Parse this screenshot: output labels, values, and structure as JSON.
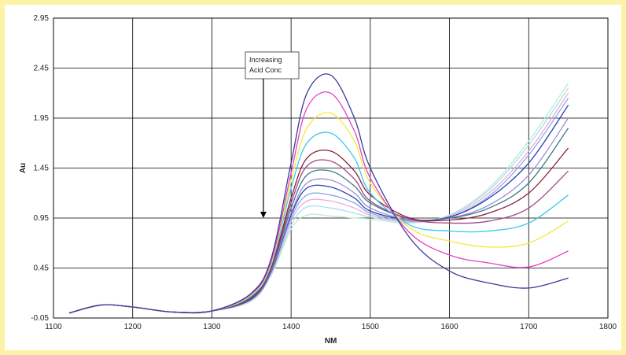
{
  "chart_data": {
    "type": "line",
    "title": "",
    "xlabel": "NM",
    "ylabel": "Au",
    "xlim": [
      1100,
      1800
    ],
    "ylim": [
      -0.05,
      2.95
    ],
    "x_ticks": [
      "1100",
      "1200",
      "1300",
      "1400",
      "1500",
      "1600",
      "1700",
      "1800"
    ],
    "y_ticks": [
      "-0.05",
      "0.45",
      "0.95",
      "1.45",
      "1.95",
      "2.45",
      "2.95"
    ],
    "grid": true,
    "legend": "none",
    "annotation": {
      "text_lines": [
        "Increasing",
        "Acid Conc"
      ],
      "arrow_target": {
        "x": 1365,
        "y": 0.95
      }
    },
    "series": [
      {
        "color": "#3a3a9a",
        "x": [
          1120,
          1160,
          1200,
          1250,
          1300,
          1350,
          1375,
          1400,
          1420,
          1450,
          1480,
          1500,
          1550,
          1600,
          1650,
          1700,
          1750
        ],
        "y": [
          0.0,
          0.08,
          0.06,
          0.01,
          0.02,
          0.2,
          0.55,
          1.5,
          2.2,
          2.38,
          1.95,
          1.45,
          0.75,
          0.42,
          0.3,
          0.25,
          0.35
        ]
      },
      {
        "color": "#e640c8",
        "x": [
          1120,
          1160,
          1200,
          1250,
          1300,
          1350,
          1375,
          1400,
          1420,
          1450,
          1480,
          1500,
          1550,
          1600,
          1650,
          1700,
          1750
        ],
        "y": [
          0.0,
          0.08,
          0.06,
          0.01,
          0.02,
          0.19,
          0.52,
          1.4,
          2.05,
          2.2,
          1.82,
          1.35,
          0.8,
          0.58,
          0.5,
          0.46,
          0.62
        ]
      },
      {
        "color": "#f2ea3a",
        "x": [
          1120,
          1160,
          1200,
          1250,
          1300,
          1350,
          1375,
          1400,
          1420,
          1450,
          1480,
          1500,
          1550,
          1600,
          1650,
          1700,
          1750
        ],
        "y": [
          0.0,
          0.08,
          0.06,
          0.01,
          0.02,
          0.18,
          0.5,
          1.32,
          1.85,
          2.0,
          1.72,
          1.3,
          0.85,
          0.72,
          0.66,
          0.7,
          0.92
        ]
      },
      {
        "color": "#35c9e8",
        "x": [
          1120,
          1160,
          1200,
          1250,
          1300,
          1350,
          1375,
          1400,
          1420,
          1450,
          1480,
          1500,
          1550,
          1600,
          1650,
          1700,
          1750
        ],
        "y": [
          0.0,
          0.08,
          0.06,
          0.01,
          0.02,
          0.17,
          0.48,
          1.25,
          1.7,
          1.8,
          1.55,
          1.2,
          0.88,
          0.82,
          0.82,
          0.9,
          1.18
        ]
      },
      {
        "color": "#8a2040",
        "x": [
          1120,
          1160,
          1200,
          1250,
          1300,
          1350,
          1375,
          1400,
          1420,
          1450,
          1480,
          1500,
          1550,
          1600,
          1650,
          1700,
          1750
        ],
        "y": [
          0.0,
          0.08,
          0.06,
          0.01,
          0.02,
          0.16,
          0.46,
          1.15,
          1.55,
          1.62,
          1.42,
          1.18,
          0.95,
          0.93,
          1.0,
          1.2,
          1.65
        ]
      },
      {
        "color": "#a0488a",
        "x": [
          1120,
          1160,
          1200,
          1250,
          1300,
          1350,
          1375,
          1400,
          1420,
          1450,
          1480,
          1500,
          1550,
          1600,
          1650,
          1700,
          1750
        ],
        "y": [
          0.0,
          0.08,
          0.06,
          0.01,
          0.02,
          0.16,
          0.45,
          1.1,
          1.47,
          1.52,
          1.34,
          1.12,
          0.94,
          0.9,
          0.92,
          1.05,
          1.42
        ]
      },
      {
        "color": "#3a7a8a",
        "x": [
          1120,
          1160,
          1200,
          1250,
          1300,
          1350,
          1375,
          1400,
          1420,
          1450,
          1480,
          1500,
          1550,
          1600,
          1650,
          1700,
          1750
        ],
        "y": [
          0.0,
          0.08,
          0.06,
          0.01,
          0.02,
          0.15,
          0.44,
          1.05,
          1.38,
          1.42,
          1.27,
          1.1,
          0.94,
          0.95,
          1.05,
          1.3,
          1.85
        ]
      },
      {
        "color": "#9a90d8",
        "x": [
          1120,
          1160,
          1200,
          1250,
          1300,
          1350,
          1375,
          1400,
          1420,
          1450,
          1480,
          1500,
          1550,
          1600,
          1650,
          1700,
          1750
        ],
        "y": [
          0.0,
          0.08,
          0.06,
          0.01,
          0.02,
          0.15,
          0.43,
          1.0,
          1.3,
          1.33,
          1.2,
          1.05,
          0.93,
          0.95,
          1.08,
          1.38,
          1.95
        ]
      },
      {
        "color": "#2a40b0",
        "x": [
          1120,
          1160,
          1200,
          1250,
          1300,
          1350,
          1375,
          1400,
          1420,
          1450,
          1480,
          1500,
          1550,
          1600,
          1650,
          1700,
          1750
        ],
        "y": [
          0.0,
          0.08,
          0.06,
          0.01,
          0.02,
          0.14,
          0.42,
          0.98,
          1.25,
          1.26,
          1.15,
          1.02,
          0.93,
          0.96,
          1.15,
          1.5,
          2.08
        ]
      },
      {
        "color": "#88a8e8",
        "x": [
          1120,
          1160,
          1200,
          1250,
          1300,
          1350,
          1375,
          1400,
          1420,
          1450,
          1480,
          1500,
          1550,
          1600,
          1650,
          1700,
          1750
        ],
        "y": [
          0.0,
          0.08,
          0.06,
          0.01,
          0.02,
          0.14,
          0.41,
          0.95,
          1.18,
          1.18,
          1.1,
          1.0,
          0.92,
          0.96,
          1.17,
          1.58,
          2.15
        ]
      },
      {
        "color": "#f0a8d8",
        "x": [
          1120,
          1160,
          1200,
          1250,
          1300,
          1350,
          1375,
          1400,
          1420,
          1450,
          1480,
          1500,
          1550,
          1600,
          1650,
          1700,
          1750
        ],
        "y": [
          0.0,
          0.08,
          0.06,
          0.01,
          0.02,
          0.13,
          0.4,
          0.92,
          1.12,
          1.12,
          1.05,
          0.98,
          0.91,
          0.97,
          1.2,
          1.62,
          2.2
        ]
      },
      {
        "color": "#a8e0f0",
        "x": [
          1120,
          1160,
          1200,
          1250,
          1300,
          1350,
          1375,
          1400,
          1420,
          1450,
          1480,
          1500,
          1550,
          1600,
          1650,
          1700,
          1750
        ],
        "y": [
          0.0,
          0.08,
          0.06,
          0.01,
          0.02,
          0.13,
          0.39,
          0.88,
          1.06,
          1.05,
          1.0,
          0.96,
          0.91,
          0.98,
          1.23,
          1.68,
          2.25
        ]
      },
      {
        "color": "#b8ecd0",
        "x": [
          1120,
          1160,
          1200,
          1250,
          1300,
          1350,
          1375,
          1400,
          1420,
          1450,
          1480,
          1500,
          1550,
          1600,
          1650,
          1700,
          1750
        ],
        "y": [
          0.0,
          0.08,
          0.06,
          0.01,
          0.02,
          0.12,
          0.38,
          0.84,
          0.98,
          0.97,
          0.95,
          0.94,
          0.9,
          0.98,
          1.25,
          1.72,
          2.3
        ]
      }
    ]
  }
}
